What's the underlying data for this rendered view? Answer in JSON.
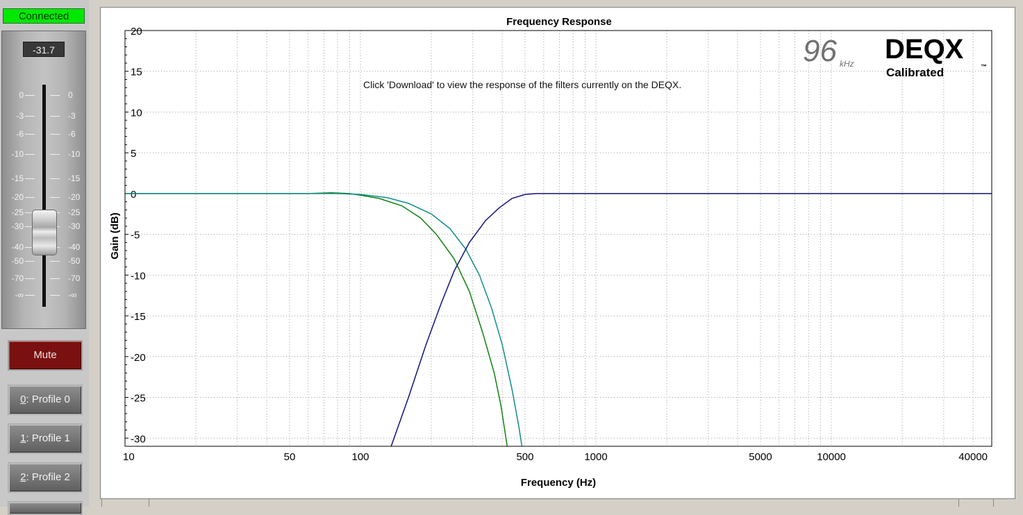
{
  "sidebar": {
    "status": "Connected",
    "level": "-31.7",
    "fader_scale": [
      "0",
      "-3",
      "-6",
      "-10",
      "-15",
      "-20",
      "-25",
      "-30",
      "-40",
      "-50",
      "-70",
      "-∞"
    ],
    "mute_label": "Mute",
    "profiles": [
      {
        "key": "0",
        "rest": ": Profile 0"
      },
      {
        "key": "1",
        "rest": ": Profile 1"
      },
      {
        "key": "2",
        "rest": ": Profile 2"
      }
    ]
  },
  "chart": {
    "message": "Click 'Download' to view the response of the filters currently on the DEQX.",
    "logo": {
      "rate": "96",
      "unit": "kHz",
      "brand": "DEQX",
      "tag": "Calibrated",
      "tm": "™"
    }
  },
  "chart_data": {
    "type": "line",
    "title": "Frequency Response",
    "xlabel": "Frequency (Hz)",
    "ylabel": "Gain (dB)",
    "x_scale": "log",
    "xlim": [
      10,
      48000
    ],
    "ylim": [
      -31,
      20
    ],
    "x_ticks": [
      10,
      50,
      100,
      500,
      1000,
      5000,
      10000,
      40000
    ],
    "y_ticks": [
      20,
      15,
      10,
      5,
      0,
      -5,
      -10,
      -15,
      -20,
      -25,
      -30
    ],
    "grid": true,
    "colors": {
      "green": "#108010",
      "teal": "#108c8c",
      "navy": "#101080",
      "grid": "#a0a0a0"
    },
    "series": [
      {
        "color": "#108010",
        "points": [
          [
            10,
            0
          ],
          [
            60,
            0
          ],
          [
            75,
            0.1
          ],
          [
            90,
            0
          ],
          [
            100,
            -0.2
          ],
          [
            120,
            -0.6
          ],
          [
            150,
            -1.5
          ],
          [
            180,
            -3
          ],
          [
            210,
            -5
          ],
          [
            250,
            -8
          ],
          [
            290,
            -12
          ],
          [
            330,
            -17
          ],
          [
            370,
            -22
          ],
          [
            395,
            -26
          ],
          [
            420,
            -31
          ]
        ]
      },
      {
        "color": "#108c8c",
        "points": [
          [
            10,
            0
          ],
          [
            80,
            0
          ],
          [
            100,
            -0.1
          ],
          [
            130,
            -0.5
          ],
          [
            160,
            -1.2
          ],
          [
            200,
            -2.5
          ],
          [
            240,
            -4.3
          ],
          [
            280,
            -6.8
          ],
          [
            320,
            -10
          ],
          [
            360,
            -14
          ],
          [
            400,
            -18.5
          ],
          [
            440,
            -24
          ],
          [
            470,
            -28.5
          ],
          [
            485,
            -31
          ]
        ]
      },
      {
        "color": "#101080",
        "points": [
          [
            135,
            -31
          ],
          [
            160,
            -25
          ],
          [
            190,
            -18.5
          ],
          [
            220,
            -13.5
          ],
          [
            250,
            -9.5
          ],
          [
            290,
            -6
          ],
          [
            340,
            -3.3
          ],
          [
            390,
            -1.7
          ],
          [
            440,
            -0.6
          ],
          [
            500,
            -0.1
          ],
          [
            560,
            0
          ],
          [
            48000,
            0
          ]
        ]
      }
    ]
  }
}
